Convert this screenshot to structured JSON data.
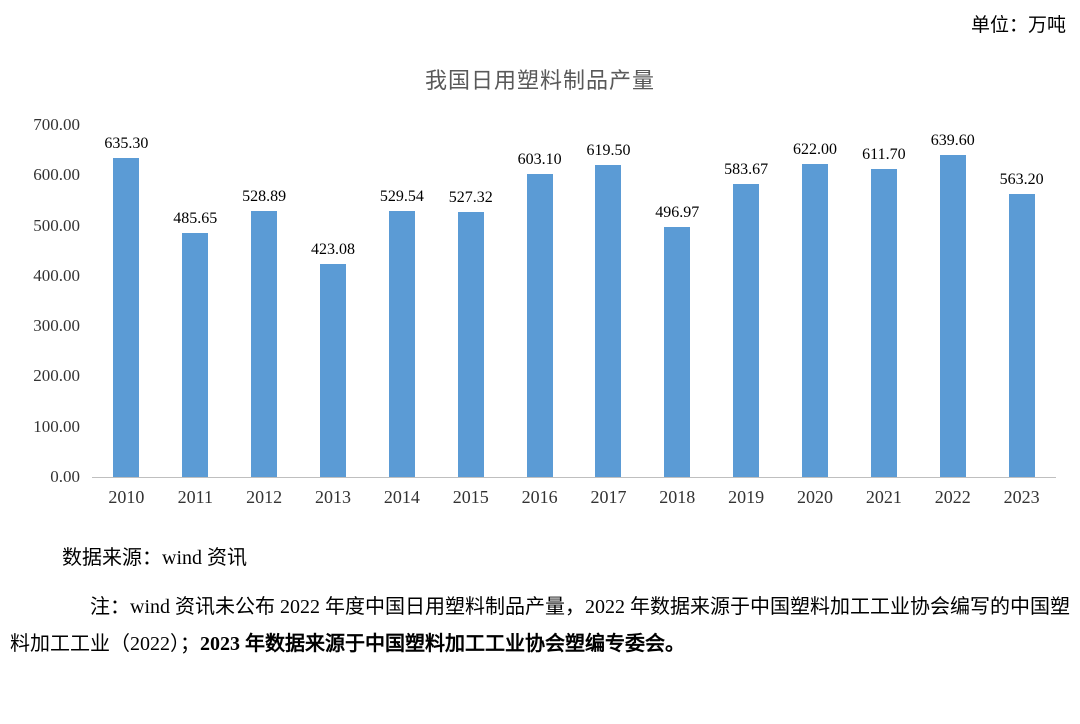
{
  "unit_label": "单位：万吨",
  "chart_data": {
    "type": "bar",
    "title": "我国日用塑料制品产量",
    "categories": [
      "2010",
      "2011",
      "2012",
      "2013",
      "2014",
      "2015",
      "2016",
      "2017",
      "2018",
      "2019",
      "2020",
      "2021",
      "2022",
      "2023"
    ],
    "values": [
      635.3,
      485.65,
      528.89,
      423.08,
      529.54,
      527.32,
      603.1,
      619.5,
      496.97,
      583.67,
      622.0,
      611.7,
      639.6,
      563.2
    ],
    "xlabel": "",
    "ylabel": "",
    "ylim": [
      0,
      700
    ],
    "yticks": [
      "700.00",
      "600.00",
      "500.00",
      "400.00",
      "300.00",
      "200.00",
      "100.00",
      "0.00"
    ],
    "bar_color": "#5b9bd5",
    "grid": false,
    "legend_position": "none",
    "data_labels": true
  },
  "footer": {
    "source": "数据来源：wind 资讯",
    "note_normal": "注：wind 资讯未公布 2022 年度中国日用塑料制品产量，2022 年数据来源于中国塑料加工工业协会编写的中国塑料加工工业（2022）；",
    "note_bold": "2023 年数据来源于中国塑料加工工业协会塑编专委会。"
  }
}
